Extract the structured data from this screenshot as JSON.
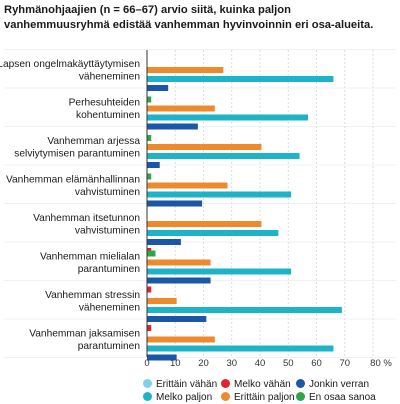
{
  "chart_data": {
    "type": "bar",
    "orientation": "horizontal",
    "title": "Ryhmänohjaajien (n = 66–67) arvio siitä, kuinka paljon vanhemmuusryhmä edistää vanhemman hyvinvoinnin eri osa-alueita.",
    "categories": [
      [
        "Lapsen ongelmakäyttäytymisen",
        "väheneminen"
      ],
      [
        "Perhesuhteiden",
        "kohentuminen"
      ],
      [
        "Vanhemman arjessa",
        "selviytymisen parantuminen"
      ],
      [
        "Vanhemman elämänhallinnan",
        "vahvistuminen"
      ],
      [
        "Vanhemman itsetunnon",
        "vahvistuminen"
      ],
      [
        "Vanhemman mielialan",
        "parantuminen"
      ],
      [
        "Vanhemman stressin",
        "väheneminen"
      ],
      [
        "Vanhemman jaksamisen",
        "parantuminen"
      ]
    ],
    "series": [
      {
        "name": "Erittäin vähän",
        "color": "#7fd0e8",
        "values": [
          0,
          0,
          0,
          0,
          0,
          0,
          0,
          0
        ]
      },
      {
        "name": "Melko vähän",
        "color": "#e2232e",
        "values": [
          0,
          0,
          0,
          0,
          1.5,
          1.5,
          1.5,
          0
        ]
      },
      {
        "name": "Jonkin verran",
        "color": "#1a57a8",
        "values": [
          7.5,
          18,
          4.5,
          19.5,
          12,
          22.5,
          21,
          10.5
        ]
      },
      {
        "name": "Melko paljon",
        "color": "#1db3c8",
        "values": [
          66,
          57,
          54,
          51,
          46.5,
          51,
          69,
          66
        ]
      },
      {
        "name": "Erittäin paljon",
        "color": "#ef8a2c",
        "values": [
          27,
          24,
          40.5,
          28.5,
          40.5,
          22.5,
          10.5,
          24
        ]
      },
      {
        "name": "En osaa sanoa",
        "color": "#2ea64a",
        "values": [
          0,
          1.5,
          1.5,
          1.5,
          0,
          3,
          0,
          0
        ]
      }
    ],
    "draw_order": [
      "En osaa sanoa",
      "Erittäin paljon",
      "Melko paljon",
      "Jonkin verran",
      "Melko vähän",
      "Erittäin vähän"
    ],
    "xaxis": {
      "ticks": [
        0,
        10,
        20,
        30,
        40,
        50,
        60,
        70,
        80
      ],
      "tick_labels": [
        "0",
        "10",
        "20",
        "30",
        "40",
        "50",
        "60",
        "70",
        "80 %"
      ],
      "xlim": [
        0,
        80
      ]
    },
    "grid": true,
    "legend_position": "bottom"
  }
}
